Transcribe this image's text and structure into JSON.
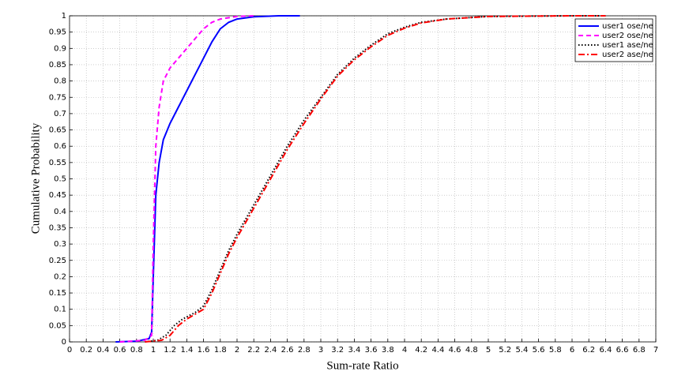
{
  "chart_data": {
    "type": "line",
    "xlabel": "Sum-rate Ratio",
    "ylabel": "Cumulative Probability",
    "xlim": [
      0,
      7
    ],
    "ylim": [
      0,
      1
    ],
    "xticks": [
      0,
      0.2,
      0.4,
      0.6,
      0.8,
      1,
      1.2,
      1.4,
      1.6,
      1.8,
      2,
      2.2,
      2.4,
      2.6,
      2.8,
      3,
      3.2,
      3.4,
      3.6,
      3.8,
      4,
      4.2,
      4.4,
      4.6,
      4.8,
      5,
      5.2,
      5.4,
      5.6,
      5.8,
      6,
      6.2,
      6.4,
      6.6,
      6.8,
      7
    ],
    "yticks": [
      0,
      0.05,
      0.1,
      0.15,
      0.2,
      0.25,
      0.3,
      0.35,
      0.4,
      0.45,
      0.5,
      0.55,
      0.6,
      0.65,
      0.7,
      0.75,
      0.8,
      0.85,
      0.9,
      0.95,
      1
    ],
    "grid": true,
    "legend": "upper right",
    "series": [
      {
        "name": "user1 ose/ne",
        "color": "#0000ff",
        "linestyle": "solid",
        "x": [
          0.55,
          0.8,
          0.95,
          0.98,
          1.0,
          1.03,
          1.07,
          1.12,
          1.2,
          1.3,
          1.4,
          1.5,
          1.6,
          1.7,
          1.8,
          1.9,
          2.0,
          2.2,
          2.5,
          2.75
        ],
        "values": [
          0,
          0.002,
          0.01,
          0.03,
          0.2,
          0.45,
          0.55,
          0.62,
          0.67,
          0.72,
          0.77,
          0.82,
          0.87,
          0.92,
          0.96,
          0.98,
          0.99,
          0.997,
          1,
          1
        ]
      },
      {
        "name": "user2 ose/ne",
        "color": "#ff00ff",
        "linestyle": "dashed",
        "x": [
          0.6,
          0.9,
          0.98,
          1.0,
          1.03,
          1.07,
          1.12,
          1.2,
          1.3,
          1.4,
          1.5,
          1.6,
          1.7,
          1.8,
          2.0,
          2.2
        ],
        "values": [
          0,
          0.005,
          0.02,
          0.3,
          0.6,
          0.72,
          0.8,
          0.84,
          0.87,
          0.9,
          0.93,
          0.96,
          0.98,
          0.99,
          0.998,
          1
        ]
      },
      {
        "name": "user1 ase/ne",
        "color": "#000000",
        "linestyle": "dotted",
        "x": [
          0.9,
          1.05,
          1.15,
          1.25,
          1.35,
          1.5,
          1.6,
          1.7,
          1.8,
          1.9,
          2.0,
          2.2,
          2.4,
          2.6,
          2.8,
          3.0,
          3.2,
          3.4,
          3.6,
          3.8,
          4.0,
          4.2,
          4.5,
          5.0,
          6.0,
          6.4
        ],
        "values": [
          0,
          0.005,
          0.02,
          0.05,
          0.07,
          0.09,
          0.11,
          0.16,
          0.22,
          0.28,
          0.33,
          0.42,
          0.51,
          0.6,
          0.68,
          0.75,
          0.82,
          0.87,
          0.91,
          0.945,
          0.965,
          0.98,
          0.99,
          0.998,
          1,
          1
        ]
      },
      {
        "name": "user2 ase/ne",
        "color": "#ff0000",
        "linestyle": "dashdot",
        "x": [
          0.9,
          1.1,
          1.2,
          1.3,
          1.4,
          1.5,
          1.6,
          1.7,
          1.8,
          1.9,
          2.0,
          2.2,
          2.4,
          2.6,
          2.8,
          3.0,
          3.2,
          3.4,
          3.6,
          3.8,
          4.0,
          4.2,
          4.5,
          5.0,
          6.0,
          6.4
        ],
        "values": [
          0,
          0.005,
          0.02,
          0.05,
          0.07,
          0.085,
          0.1,
          0.15,
          0.21,
          0.27,
          0.32,
          0.41,
          0.5,
          0.59,
          0.67,
          0.745,
          0.815,
          0.865,
          0.905,
          0.94,
          0.962,
          0.978,
          0.99,
          0.998,
          1,
          1
        ]
      }
    ]
  }
}
